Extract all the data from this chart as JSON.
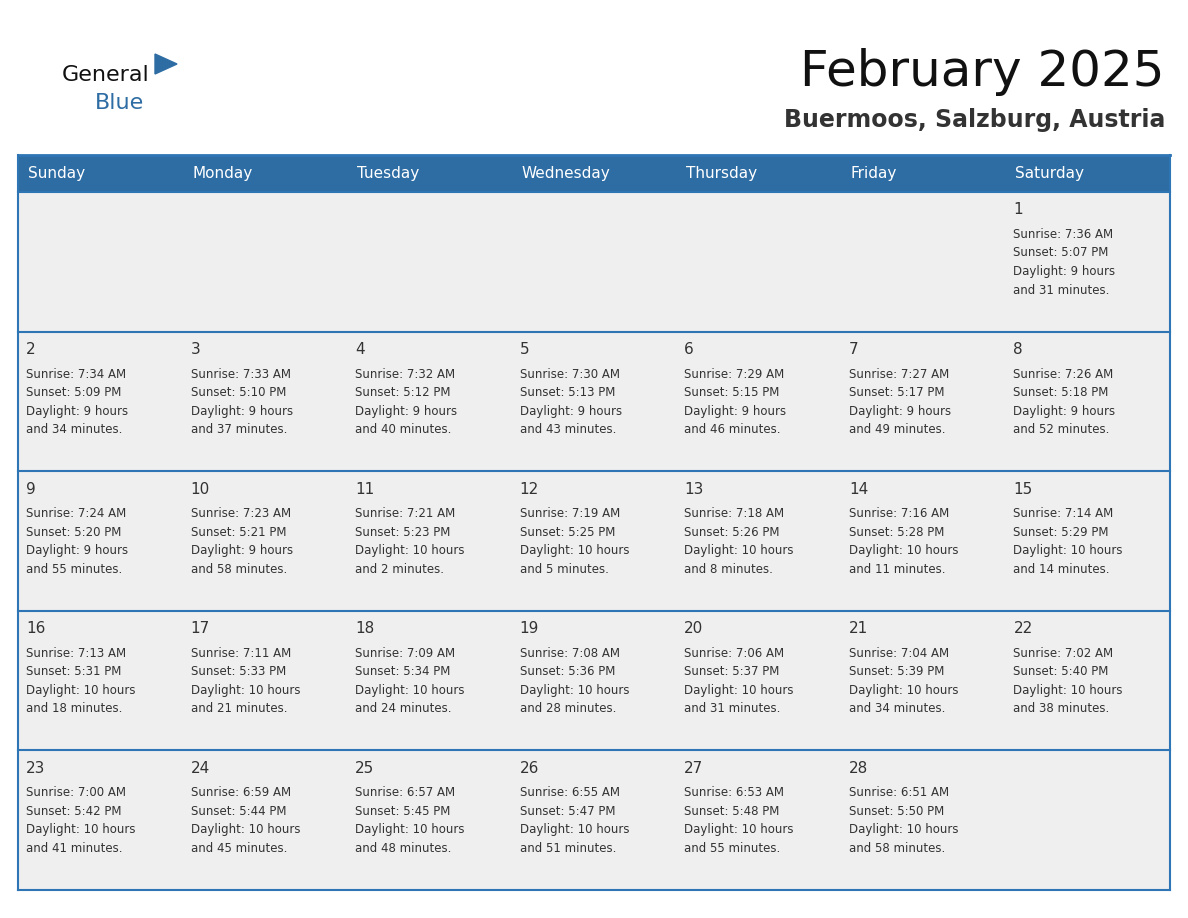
{
  "title": "February 2025",
  "subtitle": "Buermoos, Salzburg, Austria",
  "header_bg": "#2E6DA4",
  "header_text": "#FFFFFF",
  "cell_bg": "#EFEFEF",
  "border_color": "#2E75B6",
  "day_number_color": "#333333",
  "cell_text_color": "#333333",
  "days_of_week": [
    "Sunday",
    "Monday",
    "Tuesday",
    "Wednesday",
    "Thursday",
    "Friday",
    "Saturday"
  ],
  "weeks": [
    [
      {
        "day": null,
        "info": null
      },
      {
        "day": null,
        "info": null
      },
      {
        "day": null,
        "info": null
      },
      {
        "day": null,
        "info": null
      },
      {
        "day": null,
        "info": null
      },
      {
        "day": null,
        "info": null
      },
      {
        "day": "1",
        "info": "Sunrise: 7:36 AM\nSunset: 5:07 PM\nDaylight: 9 hours\nand 31 minutes."
      }
    ],
    [
      {
        "day": "2",
        "info": "Sunrise: 7:34 AM\nSunset: 5:09 PM\nDaylight: 9 hours\nand 34 minutes."
      },
      {
        "day": "3",
        "info": "Sunrise: 7:33 AM\nSunset: 5:10 PM\nDaylight: 9 hours\nand 37 minutes."
      },
      {
        "day": "4",
        "info": "Sunrise: 7:32 AM\nSunset: 5:12 PM\nDaylight: 9 hours\nand 40 minutes."
      },
      {
        "day": "5",
        "info": "Sunrise: 7:30 AM\nSunset: 5:13 PM\nDaylight: 9 hours\nand 43 minutes."
      },
      {
        "day": "6",
        "info": "Sunrise: 7:29 AM\nSunset: 5:15 PM\nDaylight: 9 hours\nand 46 minutes."
      },
      {
        "day": "7",
        "info": "Sunrise: 7:27 AM\nSunset: 5:17 PM\nDaylight: 9 hours\nand 49 minutes."
      },
      {
        "day": "8",
        "info": "Sunrise: 7:26 AM\nSunset: 5:18 PM\nDaylight: 9 hours\nand 52 minutes."
      }
    ],
    [
      {
        "day": "9",
        "info": "Sunrise: 7:24 AM\nSunset: 5:20 PM\nDaylight: 9 hours\nand 55 minutes."
      },
      {
        "day": "10",
        "info": "Sunrise: 7:23 AM\nSunset: 5:21 PM\nDaylight: 9 hours\nand 58 minutes."
      },
      {
        "day": "11",
        "info": "Sunrise: 7:21 AM\nSunset: 5:23 PM\nDaylight: 10 hours\nand 2 minutes."
      },
      {
        "day": "12",
        "info": "Sunrise: 7:19 AM\nSunset: 5:25 PM\nDaylight: 10 hours\nand 5 minutes."
      },
      {
        "day": "13",
        "info": "Sunrise: 7:18 AM\nSunset: 5:26 PM\nDaylight: 10 hours\nand 8 minutes."
      },
      {
        "day": "14",
        "info": "Sunrise: 7:16 AM\nSunset: 5:28 PM\nDaylight: 10 hours\nand 11 minutes."
      },
      {
        "day": "15",
        "info": "Sunrise: 7:14 AM\nSunset: 5:29 PM\nDaylight: 10 hours\nand 14 minutes."
      }
    ],
    [
      {
        "day": "16",
        "info": "Sunrise: 7:13 AM\nSunset: 5:31 PM\nDaylight: 10 hours\nand 18 minutes."
      },
      {
        "day": "17",
        "info": "Sunrise: 7:11 AM\nSunset: 5:33 PM\nDaylight: 10 hours\nand 21 minutes."
      },
      {
        "day": "18",
        "info": "Sunrise: 7:09 AM\nSunset: 5:34 PM\nDaylight: 10 hours\nand 24 minutes."
      },
      {
        "day": "19",
        "info": "Sunrise: 7:08 AM\nSunset: 5:36 PM\nDaylight: 10 hours\nand 28 minutes."
      },
      {
        "day": "20",
        "info": "Sunrise: 7:06 AM\nSunset: 5:37 PM\nDaylight: 10 hours\nand 31 minutes."
      },
      {
        "day": "21",
        "info": "Sunrise: 7:04 AM\nSunset: 5:39 PM\nDaylight: 10 hours\nand 34 minutes."
      },
      {
        "day": "22",
        "info": "Sunrise: 7:02 AM\nSunset: 5:40 PM\nDaylight: 10 hours\nand 38 minutes."
      }
    ],
    [
      {
        "day": "23",
        "info": "Sunrise: 7:00 AM\nSunset: 5:42 PM\nDaylight: 10 hours\nand 41 minutes."
      },
      {
        "day": "24",
        "info": "Sunrise: 6:59 AM\nSunset: 5:44 PM\nDaylight: 10 hours\nand 45 minutes."
      },
      {
        "day": "25",
        "info": "Sunrise: 6:57 AM\nSunset: 5:45 PM\nDaylight: 10 hours\nand 48 minutes."
      },
      {
        "day": "26",
        "info": "Sunrise: 6:55 AM\nSunset: 5:47 PM\nDaylight: 10 hours\nand 51 minutes."
      },
      {
        "day": "27",
        "info": "Sunrise: 6:53 AM\nSunset: 5:48 PM\nDaylight: 10 hours\nand 55 minutes."
      },
      {
        "day": "28",
        "info": "Sunrise: 6:51 AM\nSunset: 5:50 PM\nDaylight: 10 hours\nand 58 minutes."
      },
      {
        "day": null,
        "info": null
      }
    ]
  ],
  "logo_color_general": "#111111",
  "logo_color_blue": "#2E6DA4",
  "logo_triangle_color": "#2E6DA4",
  "title_fontsize": 36,
  "subtitle_fontsize": 17,
  "header_fontsize": 11,
  "day_num_fontsize": 11,
  "cell_info_fontsize": 8.5
}
